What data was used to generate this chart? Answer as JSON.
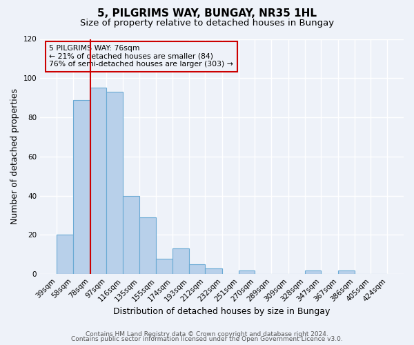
{
  "title": "5, PILGRIMS WAY, BUNGAY, NR35 1HL",
  "subtitle": "Size of property relative to detached houses in Bungay",
  "xlabel": "Distribution of detached houses by size in Bungay",
  "ylabel": "Number of detached properties",
  "bar_values": [
    20,
    89,
    95,
    93,
    40,
    29,
    8,
    13,
    5,
    3,
    0,
    2,
    0,
    0,
    0,
    2,
    0,
    2,
    0,
    0
  ],
  "bin_edges": [
    39,
    58,
    78,
    97,
    116,
    135,
    155,
    174,
    193,
    212,
    232,
    251,
    270,
    289,
    309,
    328,
    347,
    367,
    386,
    405,
    424
  ],
  "bin_labels": [
    "39sqm",
    "58sqm",
    "78sqm",
    "97sqm",
    "116sqm",
    "135sqm",
    "155sqm",
    "174sqm",
    "193sqm",
    "212sqm",
    "232sqm",
    "251sqm",
    "270sqm",
    "289sqm",
    "309sqm",
    "328sqm",
    "347sqm",
    "367sqm",
    "386sqm",
    "405sqm",
    "424sqm"
  ],
  "bar_color": "#b8d0ea",
  "bar_edgecolor": "#6aaad4",
  "bar_linewidth": 0.8,
  "vline_x": 78,
  "vline_color": "#cc0000",
  "ylim": [
    0,
    120
  ],
  "yticks": [
    0,
    20,
    40,
    60,
    80,
    100,
    120
  ],
  "annotation_line1": "5 PILGRIMS WAY: 76sqm",
  "annotation_line2": "← 21% of detached houses are smaller (84)",
  "annotation_line3": "76% of semi-detached houses are larger (303) →",
  "footer_line1": "Contains HM Land Registry data © Crown copyright and database right 2024.",
  "footer_line2": "Contains public sector information licensed under the Open Government Licence v3.0.",
  "background_color": "#eef2f9",
  "grid_color": "#ffffff",
  "title_fontsize": 11,
  "subtitle_fontsize": 9.5,
  "axis_label_fontsize": 9,
  "tick_fontsize": 7.5,
  "footer_fontsize": 6.5
}
